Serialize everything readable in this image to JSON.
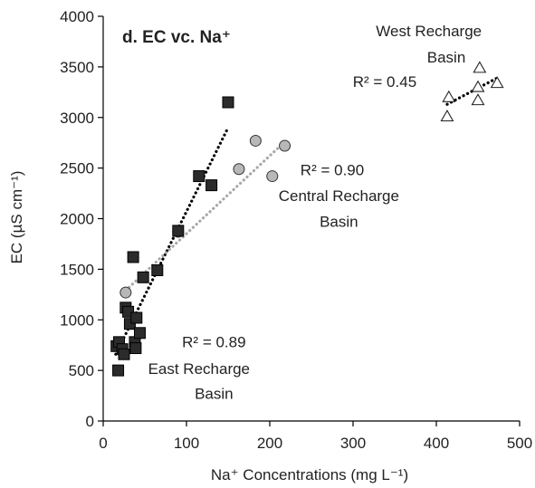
{
  "chart_data": {
    "type": "scatter",
    "title": "d. EC vc. Na⁺",
    "xlabel": "Na⁺ Concentrations (mg L⁻¹)",
    "ylabel": "EC (µS cm⁻¹)",
    "xlim": [
      0,
      500
    ],
    "ylim": [
      0,
      4000
    ],
    "xticks": [
      0,
      100,
      200,
      300,
      400,
      500
    ],
    "yticks": [
      0,
      500,
      1000,
      1500,
      2000,
      2500,
      3000,
      3500,
      4000
    ],
    "grid": false,
    "series": [
      {
        "marker": "square",
        "color": "#2b2b2b",
        "points": [
          [
            16,
            740
          ],
          [
            18,
            500
          ],
          [
            19,
            780
          ],
          [
            23,
            710
          ],
          [
            25,
            660
          ],
          [
            27,
            1120
          ],
          [
            30,
            1080
          ],
          [
            32,
            960
          ],
          [
            36,
            1620
          ],
          [
            38,
            780
          ],
          [
            39,
            720
          ],
          [
            40,
            1020
          ],
          [
            44,
            870
          ],
          [
            48,
            1420
          ],
          [
            65,
            1490
          ],
          [
            90,
            1880
          ],
          [
            115,
            2420
          ],
          [
            130,
            2330
          ],
          [
            150,
            3150
          ]
        ],
        "trendline": {
          "x": [
            15,
            150
          ],
          "y": [
            660,
            2900
          ],
          "color": "#000000"
        }
      },
      {
        "marker": "circle",
        "color": "#b8b8b8",
        "points": [
          [
            27,
            1270
          ],
          [
            90,
            1870
          ],
          [
            163,
            2490
          ],
          [
            183,
            2770
          ],
          [
            203,
            2420
          ],
          [
            218,
            2720
          ]
        ],
        "trendline": {
          "x": [
            27,
            218
          ],
          "y": [
            1290,
            2760
          ],
          "color": "#a8a8a8"
        }
      },
      {
        "marker": "triangle",
        "color": "#ffffff",
        "points": [
          [
            413,
            3010
          ],
          [
            415,
            3200
          ],
          [
            450,
            3300
          ],
          [
            450,
            3170
          ],
          [
            452,
            3490
          ],
          [
            473,
            3340
          ]
        ],
        "trendline": {
          "x": [
            413,
            473
          ],
          "y": [
            3130,
            3390
          ],
          "color": "#000000"
        }
      }
    ],
    "annotations": [
      {
        "text": "R² = 0.89",
        "x": 133,
        "y": 730,
        "anchor": "middle"
      },
      {
        "text": "East Recharge",
        "x": 115,
        "y": 465,
        "anchor": "middle"
      },
      {
        "text": "Basin",
        "x": 133,
        "y": 220,
        "anchor": "middle"
      },
      {
        "text": "R² = 0.90",
        "x": 275,
        "y": 2430,
        "anchor": "middle"
      },
      {
        "text": "Central Recharge",
        "x": 283,
        "y": 2175,
        "anchor": "middle"
      },
      {
        "text": "Basin",
        "x": 283,
        "y": 1920,
        "anchor": "middle"
      },
      {
        "text": "West Recharge",
        "x": 391,
        "y": 3805,
        "anchor": "middle"
      },
      {
        "text": "Basin",
        "x": 412,
        "y": 3545,
        "anchor": "middle"
      },
      {
        "text": "R² = 0.45",
        "x": 338,
        "y": 3300,
        "anchor": "middle"
      }
    ]
  }
}
